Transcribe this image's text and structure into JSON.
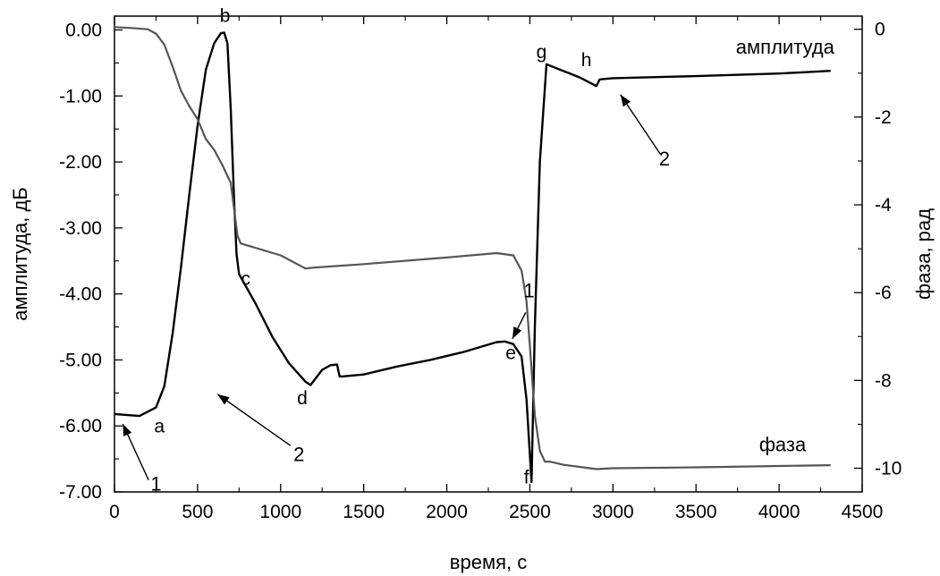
{
  "chart_data": {
    "type": "line",
    "title": "",
    "xlabel": "время, с",
    "ylabel_left": "амплитуда, дБ",
    "ylabel_right": "фаза, рад",
    "xlim": [
      0,
      4500
    ],
    "ylim_left": [
      -7.0,
      0.2
    ],
    "ylim_right": [
      -10.5,
      0.2
    ],
    "x_ticks": [
      "0",
      "500",
      "1000",
      "1500",
      "2000",
      "2500",
      "3000",
      "3500",
      "4000",
      "4500"
    ],
    "y_left_ticks": [
      "0.00",
      "-1.00",
      "-2.00",
      "-3.00",
      "-4.00",
      "-5.00",
      "-6.00",
      "-7.00"
    ],
    "y_right_ticks": [
      "0",
      "-2",
      "-4",
      "-6",
      "-8",
      "-10"
    ],
    "grid": false,
    "series": [
      {
        "name": "амплитуда",
        "axis": "left",
        "color": "#000000",
        "x": [
          0,
          150,
          250,
          300,
          350,
          400,
          450,
          500,
          550,
          600,
          640,
          660,
          680,
          700,
          720,
          735,
          750,
          850,
          950,
          1050,
          1150,
          1180,
          1250,
          1300,
          1340,
          1355,
          1370,
          1500,
          1700,
          1900,
          2100,
          2300,
          2350,
          2400,
          2450,
          2480,
          2510,
          2530,
          2560,
          2600,
          2700,
          2800,
          2900,
          2920,
          3000,
          3500,
          4000,
          4310
        ],
        "y": [
          -5.82,
          -5.85,
          -5.72,
          -5.4,
          -4.6,
          -3.6,
          -2.5,
          -1.45,
          -0.6,
          -0.2,
          -0.05,
          -0.04,
          -0.2,
          -1.2,
          -2.6,
          -3.4,
          -3.7,
          -4.15,
          -4.65,
          -5.05,
          -5.33,
          -5.38,
          -5.15,
          -5.08,
          -5.07,
          -5.25,
          -5.25,
          -5.22,
          -5.1,
          -5.0,
          -4.88,
          -4.73,
          -4.72,
          -4.76,
          -4.95,
          -5.6,
          -6.85,
          -4.5,
          -2.0,
          -0.52,
          -0.62,
          -0.72,
          -0.85,
          -0.75,
          -0.73,
          -0.7,
          -0.66,
          -0.62
        ]
      },
      {
        "name": "фаза",
        "axis": "right",
        "color": "#555555",
        "x": [
          0,
          100,
          200,
          250,
          300,
          350,
          400,
          450,
          500,
          550,
          600,
          650,
          700,
          740,
          760,
          1000,
          1150,
          1200,
          1500,
          2000,
          2300,
          2400,
          2450,
          2480,
          2500,
          2530,
          2560,
          2590,
          2620,
          2700,
          2800,
          2900,
          3000,
          3500,
          4000,
          4310
        ],
        "y": [
          0.05,
          0.03,
          0.0,
          -0.1,
          -0.35,
          -0.85,
          -1.4,
          -1.75,
          -2.05,
          -2.5,
          -2.75,
          -3.1,
          -3.5,
          -4.7,
          -4.88,
          -5.15,
          -5.45,
          -5.43,
          -5.35,
          -5.2,
          -5.1,
          -5.15,
          -5.5,
          -6.2,
          -7.2,
          -8.8,
          -9.6,
          -9.85,
          -9.85,
          -9.92,
          -9.97,
          -10.02,
          -10.0,
          -9.98,
          -9.95,
          -9.93
        ]
      }
    ],
    "point_labels": [
      {
        "text": "a",
        "x": 270,
        "y": -6.1
      },
      {
        "text": "b",
        "x": 665,
        "y": 0.12
      },
      {
        "text": "c",
        "x": 790,
        "y": -3.86
      },
      {
        "text": "d",
        "x": 1130,
        "y": -5.67
      },
      {
        "text": "e",
        "x": 2385,
        "y": -4.99
      },
      {
        "text": "f",
        "x": 2480,
        "y": -6.87
      },
      {
        "text": "g",
        "x": 2570,
        "y": -0.43
      },
      {
        "text": "h",
        "x": 2840,
        "y": -0.55
      }
    ],
    "series_labels": [
      {
        "text": "амплитуда",
        "x": 3740,
        "y": -0.36
      },
      {
        "text": "фаза",
        "x": 3880,
        "y": -6.38
      }
    ],
    "annotations": [
      {
        "text": "1",
        "text_x": 250,
        "text_y": -6.98,
        "arrow_from": [
          205,
          -6.82
        ],
        "arrow_to": [
          50,
          -5.97
        ]
      },
      {
        "text": "2",
        "text_x": 1110,
        "text_y": -6.53,
        "arrow_from": [
          1060,
          -6.3
        ],
        "arrow_to": [
          620,
          -5.52
        ]
      },
      {
        "text": "1",
        "text_x": 2495,
        "text_y": -4.05,
        "arrow_from": [
          2475,
          -4.28
        ],
        "arrow_to": [
          2395,
          -4.68
        ]
      },
      {
        "text": "2",
        "text_x": 3310,
        "text_y": -2.05,
        "arrow_from": [
          3285,
          -1.88
        ],
        "arrow_to": [
          3045,
          -0.98
        ]
      }
    ]
  }
}
